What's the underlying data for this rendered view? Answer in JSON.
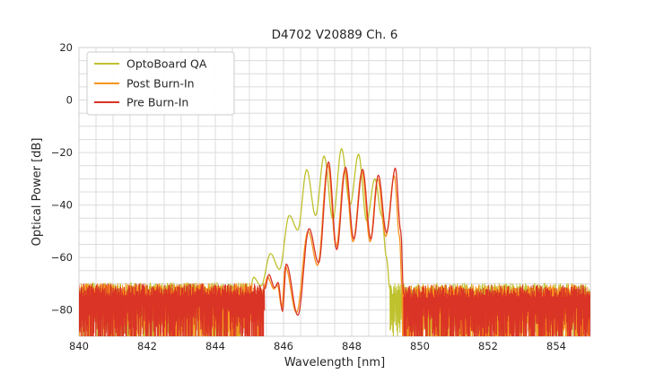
{
  "chart_data": {
    "type": "line",
    "title": "D4702 V20889 Ch. 6",
    "xlabel": "Wavelength [nm]",
    "ylabel": "Optical Power [dB]",
    "xlim": [
      840,
      855
    ],
    "ylim": [
      -90,
      20
    ],
    "xticks": [
      {
        "value": 840,
        "label": "840"
      },
      {
        "value": 842,
        "label": "842"
      },
      {
        "value": 844,
        "label": "844"
      },
      {
        "value": 846,
        "label": "846"
      },
      {
        "value": 848,
        "label": "848"
      },
      {
        "value": 850,
        "label": "850"
      },
      {
        "value": 852,
        "label": "852"
      },
      {
        "value": 854,
        "label": "854"
      }
    ],
    "yticks": [
      {
        "value": 20,
        "label": "20"
      },
      {
        "value": 0,
        "label": "0"
      },
      {
        "value": -20,
        "label": "−20"
      },
      {
        "value": -40,
        "label": "−40"
      },
      {
        "value": -60,
        "label": "−60"
      },
      {
        "value": -80,
        "label": "−80"
      }
    ],
    "grid": {
      "on": true,
      "x_minor_step": 0.5,
      "y_minor_step": 5
    },
    "legend": {
      "position": "upper left"
    },
    "series": [
      {
        "name": "OptoBoard QA",
        "color": "#bfc12d",
        "seed": 101,
        "noise_segments": [
          {
            "x_from": 840.0,
            "x_to": 845.02,
            "top": -71.5,
            "top_jitter": 2.0,
            "depth_min": 5,
            "depth_max": 19
          },
          {
            "x_from": 849.12,
            "x_to": 855.0,
            "top": -72.0,
            "top_jitter": 2.2,
            "depth_min": 5,
            "depth_max": 19
          }
        ],
        "modal_points": [
          [
            845.02,
            -72.5
          ],
          [
            845.12,
            -67.5
          ],
          [
            845.34,
            -70.8
          ],
          [
            845.62,
            -58.5
          ],
          [
            845.88,
            -64.5
          ],
          [
            846.17,
            -44.0
          ],
          [
            846.42,
            -49.5
          ],
          [
            846.68,
            -26.5
          ],
          [
            846.94,
            -44.0
          ],
          [
            847.19,
            -21.3
          ],
          [
            847.45,
            -45.5
          ],
          [
            847.7,
            -18.5
          ],
          [
            847.95,
            -40.0
          ],
          [
            848.2,
            -20.6
          ],
          [
            848.44,
            -46.0
          ],
          [
            848.68,
            -30.0
          ],
          [
            848.88,
            -44.0
          ],
          [
            849.02,
            -60.0
          ],
          [
            849.12,
            -72.0
          ]
        ]
      },
      {
        "name": "Post Burn-In",
        "color": "#f8941d",
        "seed": 202,
        "noise_segments": [
          {
            "x_from": 840.0,
            "x_to": 845.4,
            "top": -72.0,
            "top_jitter": 2.2,
            "depth_min": 5,
            "depth_max": 20
          },
          {
            "x_from": 849.48,
            "x_to": 855.0,
            "top": -72.5,
            "top_jitter": 2.2,
            "depth_min": 5,
            "depth_max": 20
          }
        ],
        "modal_points": [
          [
            845.4,
            -72.5
          ],
          [
            845.53,
            -67.5
          ],
          [
            845.72,
            -72.0
          ],
          [
            845.82,
            -70.5
          ],
          [
            845.95,
            -79.0
          ],
          [
            846.05,
            -63.5
          ],
          [
            846.38,
            -81.0
          ],
          [
            846.72,
            -50.0
          ],
          [
            847.0,
            -63.0
          ],
          [
            847.3,
            -24.8
          ],
          [
            847.54,
            -56.0
          ],
          [
            847.8,
            -26.6
          ],
          [
            848.04,
            -54.0
          ],
          [
            848.3,
            -27.2
          ],
          [
            848.54,
            -54.0
          ],
          [
            848.76,
            -30.0
          ],
          [
            849.0,
            -52.0
          ],
          [
            849.25,
            -28.8
          ],
          [
            849.4,
            -52.0
          ],
          [
            849.48,
            -73.0
          ]
        ]
      },
      {
        "name": "Pre Burn-In",
        "color": "#d93425",
        "seed": 303,
        "noise_segments": [
          {
            "x_from": 840.0,
            "x_to": 845.45,
            "top": -72.5,
            "top_jitter": 2.5,
            "depth_min": 6,
            "depth_max": 20
          },
          {
            "x_from": 849.52,
            "x_to": 855.0,
            "top": -73.0,
            "top_jitter": 2.5,
            "depth_min": 6,
            "depth_max": 20
          }
        ],
        "modal_points": [
          [
            845.45,
            -72.0
          ],
          [
            845.57,
            -66.5
          ],
          [
            845.74,
            -71.5
          ],
          [
            845.84,
            -69.5
          ],
          [
            845.97,
            -80.5
          ],
          [
            846.08,
            -62.5
          ],
          [
            846.42,
            -82.0
          ],
          [
            846.75,
            -49.0
          ],
          [
            847.03,
            -62.0
          ],
          [
            847.32,
            -23.6
          ],
          [
            847.56,
            -57.0
          ],
          [
            847.82,
            -25.6
          ],
          [
            848.06,
            -53.0
          ],
          [
            848.32,
            -26.4
          ],
          [
            848.56,
            -53.0
          ],
          [
            848.78,
            -28.6
          ],
          [
            849.02,
            -50.5
          ],
          [
            849.28,
            -25.9
          ],
          [
            849.44,
            -50.0
          ],
          [
            849.52,
            -74.0
          ]
        ]
      }
    ]
  }
}
